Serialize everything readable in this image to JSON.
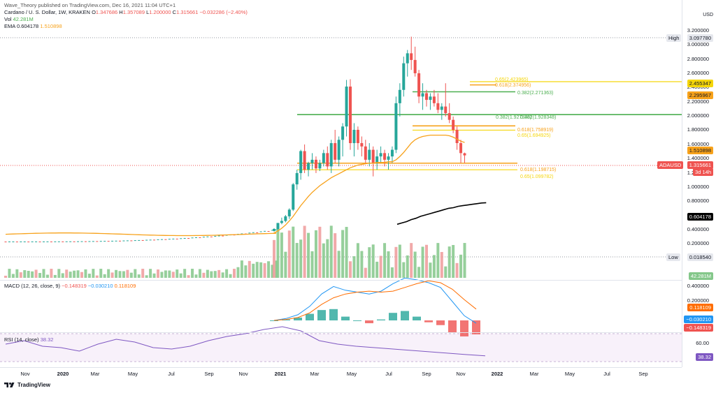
{
  "header": {
    "published": "Wave_Theory published on TradingView.com, Dec 16, 2021 11:04 UTC+1",
    "symbol": "Cardano / U. S. Dollar, 1W, KRAKEN",
    "ohlc": {
      "O_label": "O",
      "O": "1.347686",
      "H_label": "H",
      "H": "1.357089",
      "L_label": "L",
      "L": "1.200000",
      "C_label": "C",
      "C": "1.315661",
      "change": "−0.032286 (−2.40%)"
    },
    "vol_label": "Vol",
    "vol": "42.281M",
    "ema_label": "EMA",
    "ema_a": "0.604178",
    "ema_b": "1.510898"
  },
  "currency": "USD",
  "price_ticks": [
    "3.200000",
    "3.000000",
    "2.800000",
    "2.600000",
    "2.400000",
    "2.200000",
    "2.000000",
    "1.800000",
    "1.600000",
    "1.400000",
    "1.200000",
    "1.000000",
    "0.800000",
    "0.600000",
    "0.400000",
    "0.200000"
  ],
  "macd_ticks": [
    "0.400000",
    "0.200000"
  ],
  "rsi_ticks": [
    "60.00"
  ],
  "badges": {
    "high_label": "High",
    "high": "3.097780",
    "low_label": "Low",
    "low": "0.018540",
    "fib_top": "2.455347",
    "fib_382": "2.295967",
    "ema_long": "1.510898",
    "symbol": "ADAUSD",
    "price": "1.315661",
    "countdown": "3d 14h",
    "ema_short": "0.604178",
    "vol": "42.281M",
    "macd_signal": "0.118109",
    "macd_line": "−0.030210",
    "macd_hist": "−0.148319",
    "rsi": "38.32"
  },
  "fib_labels": {
    "f618_top": "0.618(2.374956)",
    "f65_top": "0.65(2.423965)",
    "f382_top": "0.382(2.271363)",
    "f382_mid_a": "0.382(1.927848)",
    "f382_mid_b": "0.382(1.928348)",
    "f618_mid": "0.618(1.758919)",
    "f65_mid": "0.65(1.694925)",
    "f618_low": "0.618(1.198715)",
    "f65_low": "0.65(1.099782)"
  },
  "macd": {
    "title": "MACD (12, 26, close, 9)",
    "v1": "−0.148319",
    "v2": "−0.030210",
    "v3": "0.118109"
  },
  "rsi": {
    "title": "RSI (14, close)",
    "value": "38.32"
  },
  "time_axis": [
    "Nov",
    "2020",
    "Mar",
    "May",
    "Jul",
    "Sep",
    "Nov",
    "2021",
    "Mar",
    "May",
    "Jul",
    "Sep",
    "Nov",
    "2022",
    "Mar",
    "May",
    "Jul",
    "Sep"
  ],
  "footer": {
    "brand": "TradingView"
  },
  "colors": {
    "up": "#26a69a",
    "down": "#ef5350",
    "ema_long": "#f7a21b",
    "ema_short": "#000000",
    "fib_green": "#4caf50",
    "fib_orange": "#f7a21b",
    "fib_yellow": "#f5d60a",
    "macd": "#2196f3",
    "signal": "#ff6d00",
    "rsi": "#7e57c2",
    "vol_up": "#84c78a",
    "vol_down": "#ef9a9a"
  },
  "chart_data": [
    {
      "type": "candlestick",
      "title": "Cardano / U. S. Dollar, 1W, KRAKEN",
      "ylim": [
        0,
        3.2
      ],
      "log_scale": false,
      "grid": false,
      "weekly_candles_2021": [
        {
          "o": 0.18,
          "h": 0.22,
          "l": 0.17,
          "c": 0.21
        },
        {
          "o": 0.21,
          "h": 0.3,
          "l": 0.2,
          "c": 0.3
        },
        {
          "o": 0.3,
          "h": 0.38,
          "l": 0.28,
          "c": 0.33
        },
        {
          "o": 0.33,
          "h": 0.42,
          "l": 0.31,
          "c": 0.4
        },
        {
          "o": 0.4,
          "h": 0.52,
          "l": 0.36,
          "c": 0.5
        },
        {
          "o": 0.5,
          "h": 0.9,
          "l": 0.48,
          "c": 0.88
        },
        {
          "o": 0.88,
          "h": 1.1,
          "l": 0.8,
          "c": 1.05
        },
        {
          "o": 1.05,
          "h": 1.4,
          "l": 0.95,
          "c": 1.38
        },
        {
          "o": 1.38,
          "h": 1.48,
          "l": 1.05,
          "c": 1.1
        },
        {
          "o": 1.1,
          "h": 1.22,
          "l": 1.0,
          "c": 1.2
        },
        {
          "o": 1.2,
          "h": 1.35,
          "l": 1.1,
          "c": 1.25
        },
        {
          "o": 1.25,
          "h": 1.3,
          "l": 1.05,
          "c": 1.12
        },
        {
          "o": 1.12,
          "h": 1.25,
          "l": 1.08,
          "c": 1.2
        },
        {
          "o": 1.2,
          "h": 1.4,
          "l": 1.15,
          "c": 1.35
        },
        {
          "o": 1.35,
          "h": 1.45,
          "l": 1.1,
          "c": 1.15
        },
        {
          "o": 1.15,
          "h": 1.55,
          "l": 1.05,
          "c": 1.5
        },
        {
          "o": 1.5,
          "h": 1.7,
          "l": 1.2,
          "c": 1.25
        },
        {
          "o": 1.25,
          "h": 1.6,
          "l": 1.15,
          "c": 1.55
        },
        {
          "o": 1.55,
          "h": 1.8,
          "l": 1.3,
          "c": 1.75
        },
        {
          "o": 1.75,
          "h": 2.45,
          "l": 1.6,
          "c": 2.35
        },
        {
          "o": 2.35,
          "h": 2.46,
          "l": 1.4,
          "c": 1.5
        },
        {
          "o": 1.5,
          "h": 1.8,
          "l": 1.3,
          "c": 1.7
        },
        {
          "o": 1.7,
          "h": 1.75,
          "l": 1.4,
          "c": 1.5
        },
        {
          "o": 1.5,
          "h": 1.6,
          "l": 1.3,
          "c": 1.45
        },
        {
          "o": 1.45,
          "h": 1.55,
          "l": 1.2,
          "c": 1.25
        },
        {
          "o": 1.25,
          "h": 1.5,
          "l": 1.15,
          "c": 1.4
        },
        {
          "o": 1.4,
          "h": 1.45,
          "l": 1.0,
          "c": 1.2
        },
        {
          "o": 1.2,
          "h": 1.4,
          "l": 1.1,
          "c": 1.3
        },
        {
          "o": 1.3,
          "h": 1.45,
          "l": 1.2,
          "c": 1.35
        },
        {
          "o": 1.35,
          "h": 1.4,
          "l": 1.15,
          "c": 1.25
        },
        {
          "o": 1.25,
          "h": 1.35,
          "l": 1.1,
          "c": 1.3
        },
        {
          "o": 1.3,
          "h": 1.45,
          "l": 1.2,
          "c": 1.4
        },
        {
          "o": 1.4,
          "h": 2.2,
          "l": 1.35,
          "c": 2.1
        },
        {
          "o": 2.1,
          "h": 2.4,
          "l": 1.9,
          "c": 2.3
        },
        {
          "o": 2.3,
          "h": 2.8,
          "l": 2.2,
          "c": 2.7
        },
        {
          "o": 2.7,
          "h": 2.9,
          "l": 2.5,
          "c": 2.85
        },
        {
          "o": 2.85,
          "h": 3.1,
          "l": 2.6,
          "c": 2.75
        },
        {
          "o": 2.75,
          "h": 2.95,
          "l": 2.5,
          "c": 2.55
        },
        {
          "o": 2.55,
          "h": 2.6,
          "l": 2.1,
          "c": 2.2
        },
        {
          "o": 2.2,
          "h": 2.4,
          "l": 2.0,
          "c": 2.25
        },
        {
          "o": 2.25,
          "h": 2.3,
          "l": 2.05,
          "c": 2.15
        },
        {
          "o": 2.15,
          "h": 2.25,
          "l": 2.0,
          "c": 2.2
        },
        {
          "o": 2.2,
          "h": 2.3,
          "l": 2.05,
          "c": 2.1
        },
        {
          "o": 2.1,
          "h": 2.25,
          "l": 1.95,
          "c": 2.0
        },
        {
          "o": 2.0,
          "h": 2.1,
          "l": 1.85,
          "c": 2.05
        },
        {
          "o": 2.05,
          "h": 2.4,
          "l": 1.9,
          "c": 1.95
        },
        {
          "o": 1.95,
          "h": 2.1,
          "l": 1.8,
          "c": 1.85
        },
        {
          "o": 1.85,
          "h": 1.9,
          "l": 1.65,
          "c": 1.7
        },
        {
          "o": 1.7,
          "h": 1.75,
          "l": 1.4,
          "c": 1.5
        },
        {
          "o": 1.5,
          "h": 1.55,
          "l": 1.2,
          "c": 1.35
        },
        {
          "o": 1.347686,
          "h": 1.357089,
          "l": 1.2,
          "c": 1.315661
        }
      ],
      "flat_pre2021_price_range": [
        0.02,
        0.2
      ],
      "ema_long_last": 1.510898,
      "ema_short_last": 0.604178,
      "fib_levels": [
        {
          "ratio": 0.65,
          "price": 2.423965,
          "color": "yellow"
        },
        {
          "ratio": 0.618,
          "price": 2.374956,
          "color": "orange"
        },
        {
          "ratio": 0.382,
          "price": 2.271363,
          "color": "green"
        },
        {
          "ratio": 0.382,
          "price": 1.928348,
          "color": "green"
        },
        {
          "ratio": 0.618,
          "price": 1.758919,
          "color": "orange"
        },
        {
          "ratio": 0.65,
          "price": 1.694925,
          "color": "yellow"
        },
        {
          "ratio": 0.618,
          "price": 1.198715,
          "color": "orange"
        },
        {
          "ratio": 0.65,
          "price": 1.099782,
          "color": "yellow"
        }
      ],
      "high": 3.09778,
      "low": 0.01854,
      "last": 1.315661
    },
    {
      "type": "line",
      "title": "MACD (12, 26, close, 9)",
      "series": [
        {
          "name": "MACD",
          "values": [
            0.0,
            0.02,
            0.06,
            0.15,
            0.28,
            0.36,
            0.32,
            0.3,
            0.28,
            0.31,
            0.39,
            0.45,
            0.43,
            0.4,
            0.35,
            0.2,
            0.05,
            -0.03
          ]
        },
        {
          "name": "Signal",
          "values": [
            0.0,
            0.01,
            0.03,
            0.08,
            0.17,
            0.24,
            0.28,
            0.3,
            0.31,
            0.3,
            0.31,
            0.35,
            0.39,
            0.42,
            0.4,
            0.33,
            0.22,
            0.12
          ]
        }
      ],
      "last": {
        "macd": -0.03021,
        "signal": 0.118109,
        "hist": -0.148319
      },
      "ticks": [
        0.4,
        0.2
      ]
    },
    {
      "type": "line",
      "title": "RSI (14, close)",
      "values": [
        55,
        60,
        52,
        50,
        45,
        55,
        62,
        58,
        50,
        48,
        52,
        60,
        66,
        70,
        76,
        80,
        74,
        60,
        55,
        52,
        50,
        48,
        46,
        44,
        42,
        40,
        38.32
      ],
      "last": 38.32,
      "ticks": [
        60
      ]
    }
  ]
}
